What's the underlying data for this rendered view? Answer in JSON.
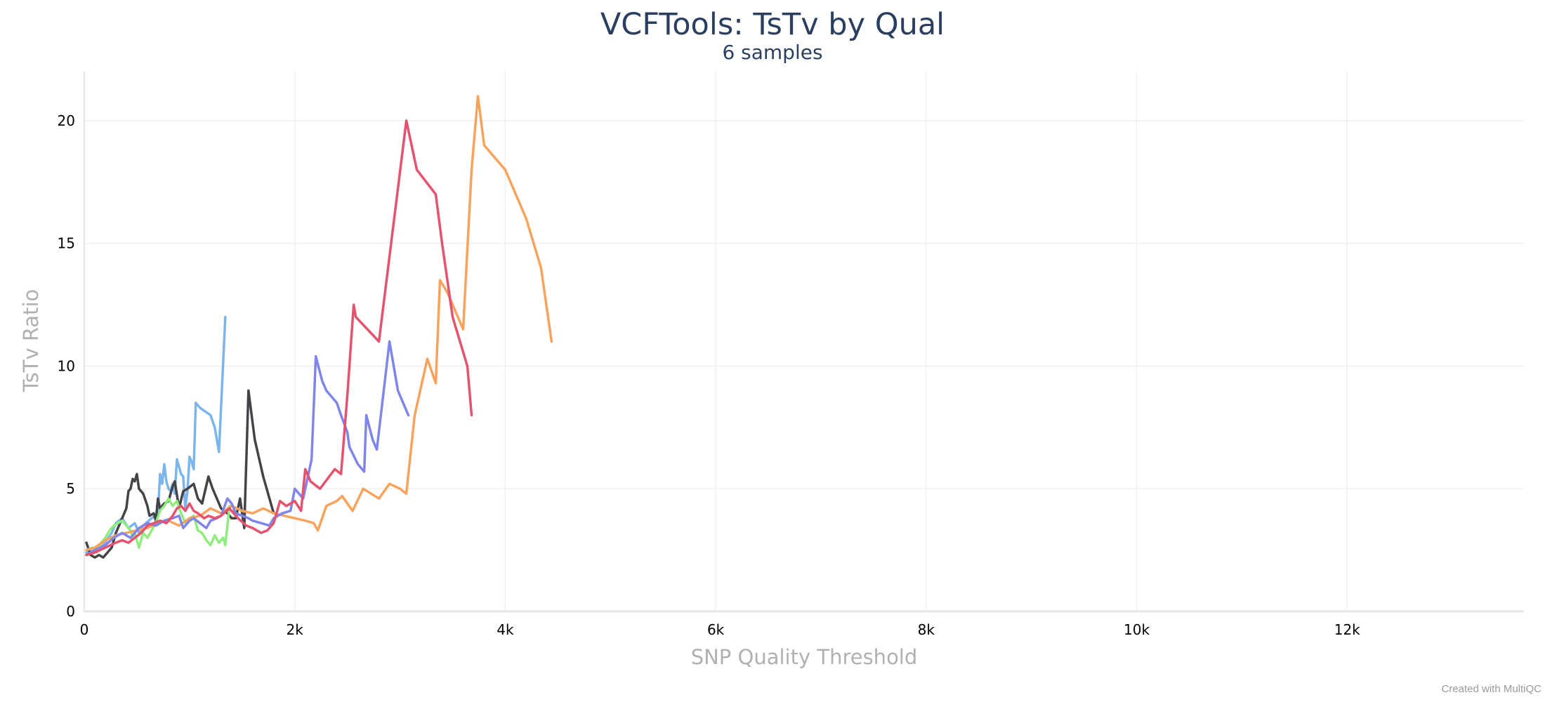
{
  "chart_data": {
    "type": "line",
    "title": "VCFTools: TsTv by Qual",
    "subtitle": "6 samples",
    "xlabel": "SNP Quality Threshold",
    "ylabel": "TsTv Ratio",
    "xlim": [
      0,
      13680
    ],
    "ylim": [
      0,
      22
    ],
    "x_ticks": [
      {
        "value": 0,
        "label": "0"
      },
      {
        "value": 2000,
        "label": "2k"
      },
      {
        "value": 4000,
        "label": "4k"
      },
      {
        "value": 6000,
        "label": "6k"
      },
      {
        "value": 8000,
        "label": "8k"
      },
      {
        "value": 10000,
        "label": "10k"
      },
      {
        "value": 12000,
        "label": "12k"
      }
    ],
    "y_ticks": [
      {
        "value": 0,
        "label": "0"
      },
      {
        "value": 5,
        "label": "5"
      },
      {
        "value": 10,
        "label": "10"
      },
      {
        "value": 15,
        "label": "15"
      },
      {
        "value": 20,
        "label": "20"
      }
    ],
    "grid": true,
    "legend": "none",
    "series": [
      {
        "color": "#7cb5ec",
        "points": [
          [
            20,
            2.4
          ],
          [
            100,
            2.5
          ],
          [
            180,
            2.7
          ],
          [
            260,
            3.2
          ],
          [
            300,
            3.6
          ],
          [
            360,
            3.8
          ],
          [
            420,
            3.4
          ],
          [
            480,
            3.6
          ],
          [
            520,
            3.2
          ],
          [
            560,
            3.5
          ],
          [
            640,
            3.8
          ],
          [
            700,
            4.0
          ],
          [
            720,
            5.6
          ],
          [
            740,
            5.2
          ],
          [
            760,
            6.0
          ],
          [
            780,
            5.3
          ],
          [
            800,
            5.0
          ],
          [
            820,
            4.9
          ],
          [
            840,
            5.2
          ],
          [
            860,
            4.8
          ],
          [
            880,
            6.2
          ],
          [
            900,
            5.9
          ],
          [
            920,
            5.6
          ],
          [
            940,
            5.5
          ],
          [
            960,
            4.2
          ],
          [
            980,
            4.9
          ],
          [
            1000,
            6.3
          ],
          [
            1020,
            6.1
          ],
          [
            1040,
            5.8
          ],
          [
            1060,
            8.5
          ],
          [
            1100,
            8.3
          ],
          [
            1200,
            8.0
          ],
          [
            1240,
            7.5
          ],
          [
            1280,
            6.5
          ],
          [
            1340,
            12.0
          ]
        ]
      },
      {
        "color": "#434348",
        "points": [
          [
            20,
            2.8
          ],
          [
            60,
            2.3
          ],
          [
            100,
            2.2
          ],
          [
            140,
            2.3
          ],
          [
            180,
            2.2
          ],
          [
            220,
            2.4
          ],
          [
            260,
            2.6
          ],
          [
            300,
            3.2
          ],
          [
            340,
            3.6
          ],
          [
            380,
            4.0
          ],
          [
            400,
            4.2
          ],
          [
            420,
            4.9
          ],
          [
            440,
            5.0
          ],
          [
            460,
            5.4
          ],
          [
            480,
            5.3
          ],
          [
            500,
            5.6
          ],
          [
            520,
            5.0
          ],
          [
            560,
            4.8
          ],
          [
            600,
            4.3
          ],
          [
            620,
            3.9
          ],
          [
            660,
            4.0
          ],
          [
            680,
            3.7
          ],
          [
            700,
            4.6
          ],
          [
            720,
            4.2
          ],
          [
            760,
            4.4
          ],
          [
            800,
            4.5
          ],
          [
            840,
            5.1
          ],
          [
            860,
            5.3
          ],
          [
            900,
            4.2
          ],
          [
            940,
            4.9
          ],
          [
            980,
            5.0
          ],
          [
            1040,
            5.2
          ],
          [
            1080,
            4.6
          ],
          [
            1120,
            4.4
          ],
          [
            1180,
            5.5
          ],
          [
            1220,
            5.0
          ],
          [
            1260,
            4.6
          ],
          [
            1300,
            4.2
          ],
          [
            1360,
            4.0
          ],
          [
            1400,
            3.8
          ],
          [
            1440,
            3.8
          ],
          [
            1480,
            4.6
          ],
          [
            1520,
            3.4
          ],
          [
            1560,
            9.0
          ],
          [
            1620,
            7.0
          ],
          [
            1700,
            5.5
          ],
          [
            1800,
            4.0
          ]
        ]
      },
      {
        "color": "#90ed7d",
        "points": [
          [
            20,
            2.5
          ],
          [
            80,
            2.6
          ],
          [
            120,
            2.4
          ],
          [
            160,
            2.8
          ],
          [
            200,
            3.0
          ],
          [
            240,
            3.3
          ],
          [
            280,
            3.5
          ],
          [
            320,
            3.6
          ],
          [
            360,
            3.7
          ],
          [
            400,
            3.5
          ],
          [
            440,
            3.3
          ],
          [
            460,
            3.0
          ],
          [
            480,
            3.2
          ],
          [
            500,
            2.9
          ],
          [
            520,
            2.6
          ],
          [
            560,
            3.2
          ],
          [
            600,
            3.0
          ],
          [
            640,
            3.3
          ],
          [
            680,
            3.6
          ],
          [
            720,
            4.1
          ],
          [
            760,
            4.3
          ],
          [
            800,
            4.6
          ],
          [
            840,
            4.3
          ],
          [
            880,
            4.5
          ],
          [
            920,
            4.0
          ],
          [
            960,
            3.6
          ],
          [
            1000,
            3.8
          ],
          [
            1040,
            3.9
          ],
          [
            1080,
            3.3
          ],
          [
            1120,
            3.2
          ],
          [
            1160,
            2.9
          ],
          [
            1200,
            2.7
          ],
          [
            1240,
            3.1
          ],
          [
            1280,
            2.8
          ],
          [
            1320,
            3.0
          ],
          [
            1340,
            2.7
          ],
          [
            1380,
            4.3
          ]
        ]
      },
      {
        "color": "#f7a35c",
        "points": [
          [
            20,
            2.5
          ],
          [
            100,
            2.6
          ],
          [
            200,
            2.9
          ],
          [
            300,
            3.1
          ],
          [
            400,
            3.2
          ],
          [
            500,
            3.3
          ],
          [
            600,
            3.4
          ],
          [
            700,
            3.6
          ],
          [
            800,
            3.7
          ],
          [
            900,
            3.5
          ],
          [
            1000,
            3.8
          ],
          [
            1100,
            3.9
          ],
          [
            1200,
            4.2
          ],
          [
            1300,
            4.0
          ],
          [
            1400,
            4.3
          ],
          [
            1500,
            4.1
          ],
          [
            1600,
            4.0
          ],
          [
            1700,
            4.2
          ],
          [
            1800,
            4.0
          ],
          [
            1900,
            3.9
          ],
          [
            2000,
            3.8
          ],
          [
            2100,
            3.7
          ],
          [
            2180,
            3.6
          ],
          [
            2220,
            3.3
          ],
          [
            2260,
            3.8
          ],
          [
            2300,
            4.3
          ],
          [
            2400,
            4.5
          ],
          [
            2450,
            4.7
          ],
          [
            2550,
            4.1
          ],
          [
            2650,
            5.0
          ],
          [
            2800,
            4.6
          ],
          [
            2900,
            5.2
          ],
          [
            3000,
            5.0
          ],
          [
            3060,
            4.8
          ],
          [
            3080,
            5.6
          ],
          [
            3140,
            8.0
          ],
          [
            3260,
            10.3
          ],
          [
            3340,
            9.3
          ],
          [
            3380,
            13.5
          ],
          [
            3450,
            13.0
          ],
          [
            3600,
            11.5
          ],
          [
            3680,
            18.0
          ],
          [
            3740,
            21.0
          ],
          [
            3800,
            19.0
          ],
          [
            4000,
            18.0
          ],
          [
            4200,
            16.0
          ],
          [
            4340,
            14.0
          ],
          [
            4440,
            11.0
          ]
        ]
      },
      {
        "color": "#8085e9",
        "points": [
          [
            20,
            2.3
          ],
          [
            100,
            2.5
          ],
          [
            200,
            2.7
          ],
          [
            280,
            3.0
          ],
          [
            360,
            3.2
          ],
          [
            440,
            3.0
          ],
          [
            520,
            3.4
          ],
          [
            600,
            3.6
          ],
          [
            680,
            3.5
          ],
          [
            760,
            3.7
          ],
          [
            840,
            3.8
          ],
          [
            900,
            3.9
          ],
          [
            940,
            3.4
          ],
          [
            1000,
            3.7
          ],
          [
            1040,
            3.8
          ],
          [
            1100,
            3.6
          ],
          [
            1160,
            3.4
          ],
          [
            1200,
            3.7
          ],
          [
            1260,
            3.8
          ],
          [
            1300,
            3.9
          ],
          [
            1360,
            4.6
          ],
          [
            1400,
            4.4
          ],
          [
            1440,
            4.0
          ],
          [
            1500,
            3.9
          ],
          [
            1560,
            3.8
          ],
          [
            1600,
            3.7
          ],
          [
            1680,
            3.6
          ],
          [
            1760,
            3.5
          ],
          [
            1800,
            3.8
          ],
          [
            1880,
            4.0
          ],
          [
            1960,
            4.1
          ],
          [
            2000,
            5.0
          ],
          [
            2040,
            4.8
          ],
          [
            2080,
            4.6
          ],
          [
            2160,
            6.2
          ],
          [
            2200,
            10.4
          ],
          [
            2260,
            9.4
          ],
          [
            2300,
            9.0
          ],
          [
            2400,
            8.5
          ],
          [
            2440,
            8.0
          ],
          [
            2500,
            7.3
          ],
          [
            2520,
            6.7
          ],
          [
            2600,
            6.0
          ],
          [
            2660,
            5.7
          ],
          [
            2680,
            8.0
          ],
          [
            2740,
            7.0
          ],
          [
            2780,
            6.6
          ],
          [
            2900,
            11.0
          ],
          [
            2980,
            9.0
          ],
          [
            3080,
            8.0
          ]
        ]
      },
      {
        "color": "#e4526e",
        "points": [
          [
            20,
            2.3
          ],
          [
            100,
            2.4
          ],
          [
            200,
            2.6
          ],
          [
            300,
            2.8
          ],
          [
            360,
            2.9
          ],
          [
            420,
            2.8
          ],
          [
            480,
            3.0
          ],
          [
            540,
            3.2
          ],
          [
            600,
            3.5
          ],
          [
            660,
            3.6
          ],
          [
            720,
            3.7
          ],
          [
            780,
            3.6
          ],
          [
            840,
            3.9
          ],
          [
            880,
            4.2
          ],
          [
            920,
            4.3
          ],
          [
            960,
            4.1
          ],
          [
            1000,
            4.4
          ],
          [
            1040,
            4.1
          ],
          [
            1080,
            4.0
          ],
          [
            1140,
            3.8
          ],
          [
            1180,
            3.9
          ],
          [
            1240,
            3.8
          ],
          [
            1300,
            3.9
          ],
          [
            1380,
            4.2
          ],
          [
            1460,
            3.8
          ],
          [
            1540,
            3.5
          ],
          [
            1600,
            3.4
          ],
          [
            1680,
            3.2
          ],
          [
            1740,
            3.3
          ],
          [
            1800,
            3.6
          ],
          [
            1860,
            4.5
          ],
          [
            1920,
            4.3
          ],
          [
            2000,
            4.5
          ],
          [
            2060,
            4.1
          ],
          [
            2100,
            5.8
          ],
          [
            2150,
            5.3
          ],
          [
            2240,
            5.0
          ],
          [
            2380,
            5.8
          ],
          [
            2440,
            5.6
          ],
          [
            2500,
            8.8
          ],
          [
            2560,
            12.5
          ],
          [
            2580,
            12.0
          ],
          [
            2800,
            11.0
          ],
          [
            3060,
            20.0
          ],
          [
            3160,
            18.0
          ],
          [
            3340,
            17.0
          ],
          [
            3400,
            15.0
          ],
          [
            3500,
            12.0
          ],
          [
            3640,
            10.0
          ],
          [
            3680,
            8.0
          ]
        ]
      }
    ]
  },
  "credit": "Created with MultiQC"
}
